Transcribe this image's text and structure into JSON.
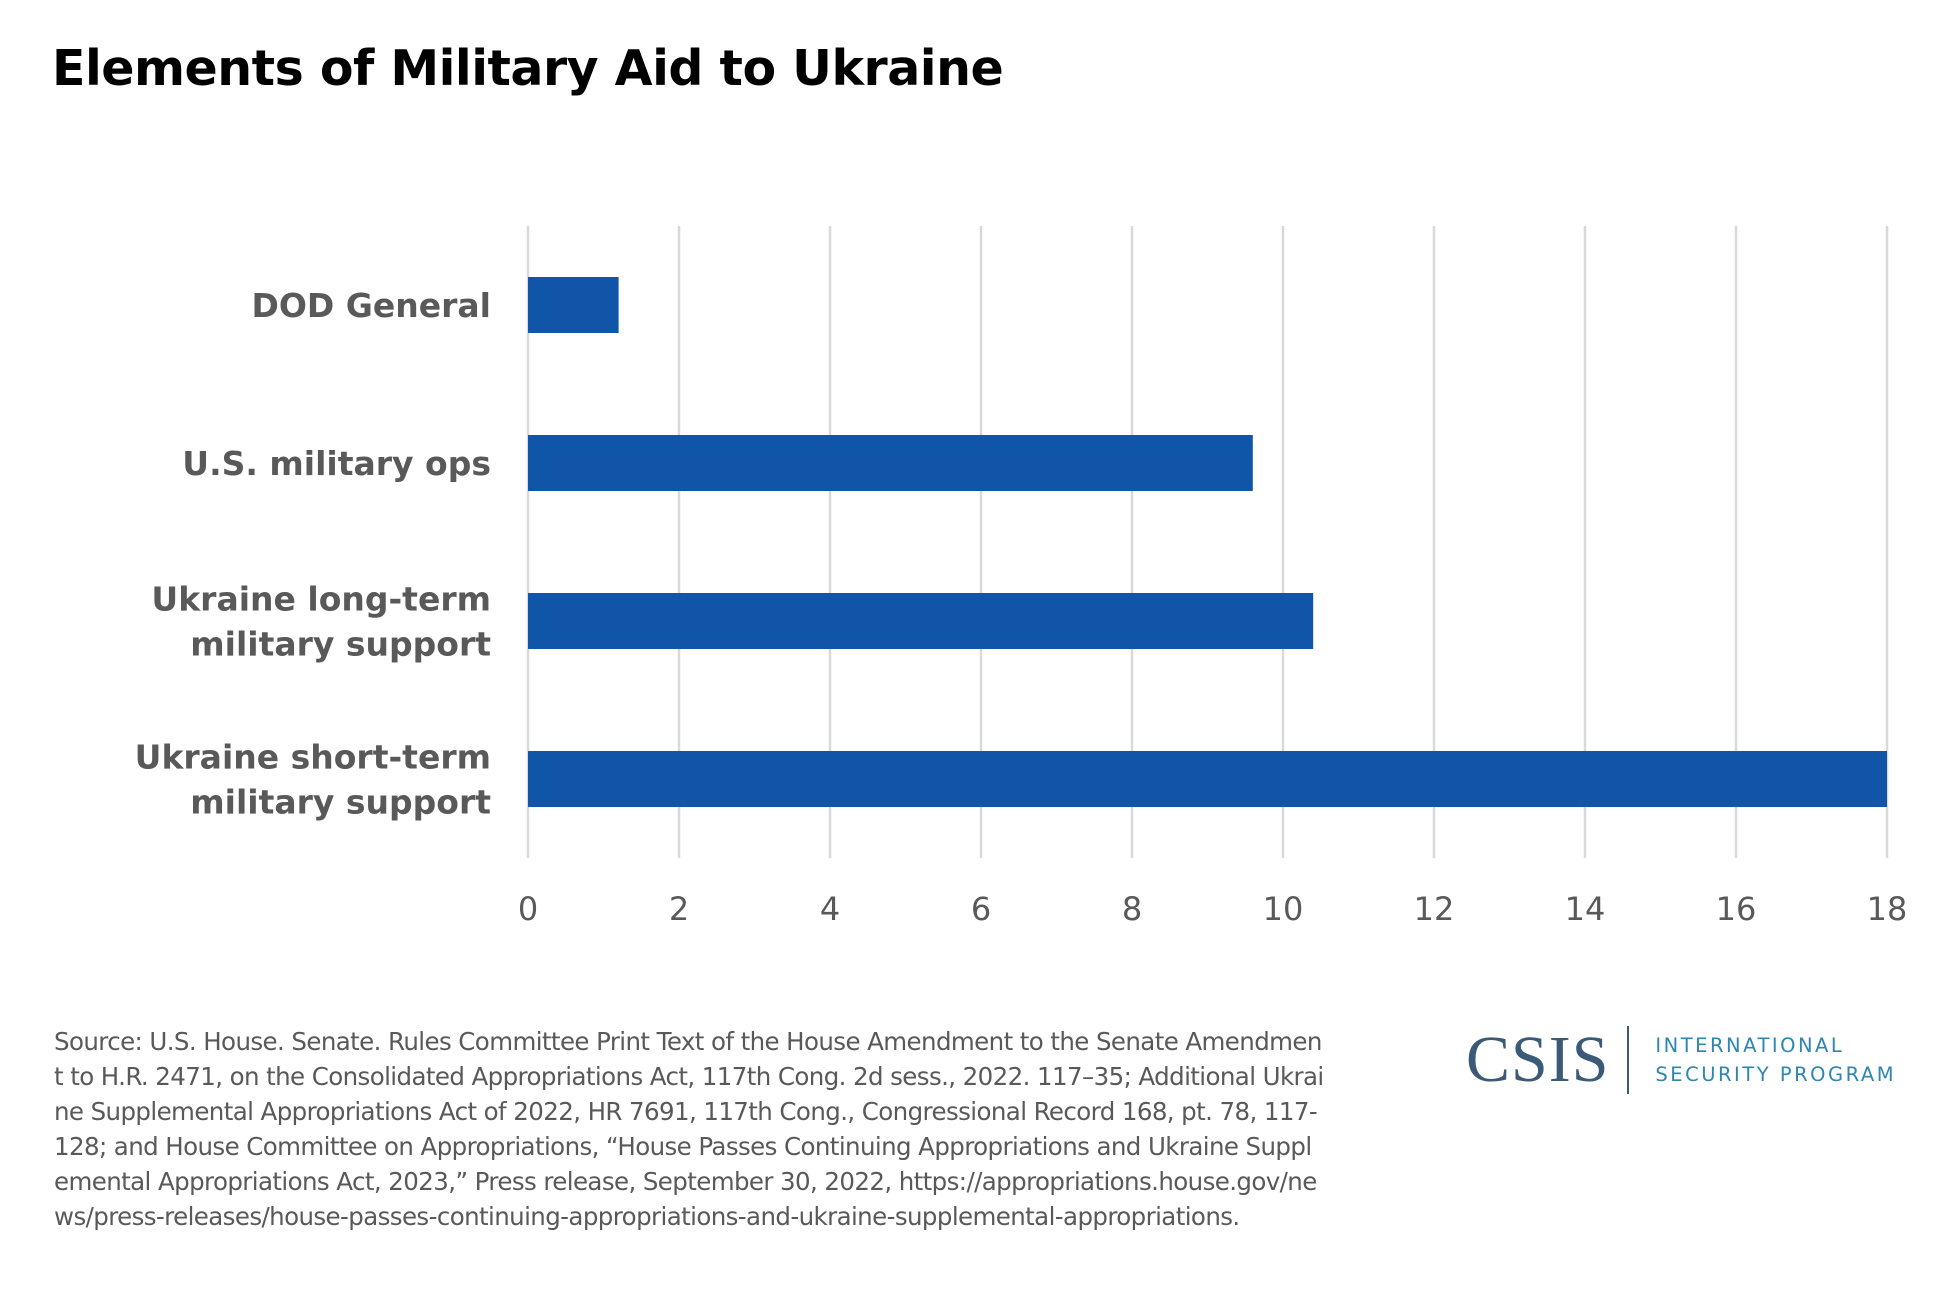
{
  "title": "Elements of Military Aid to Ukraine",
  "chart_data": {
    "type": "bar",
    "orientation": "horizontal",
    "title": "Elements of Military Aid to Ukraine",
    "categories": [
      [
        "DOD General"
      ],
      [
        "U.S. military ops"
      ],
      [
        "Ukraine long-term",
        "military support"
      ],
      [
        "Ukraine short-term",
        "military support"
      ]
    ],
    "values": [
      1.2,
      9.6,
      10.4,
      18
    ],
    "xlim": [
      0,
      18
    ],
    "xticks": [
      0,
      2,
      4,
      6,
      8,
      10,
      12,
      14,
      16,
      18
    ],
    "xlabel": "",
    "ylabel": "",
    "grid": "vertical",
    "legend": "none",
    "bar_color": "#1155a8",
    "grid_color": "#d9d9d9"
  },
  "source": "Source: U.S. House. Senate. Rules Committee Print Text of the House Amendment to the Senate Amendment to H.R. 2471, on the Consolidated Appropriations Act, 117th Cong. 2d sess., 2022. 117–35; Additional Ukraine Supplemental Appropriations Act of 2022, HR 7691, 117th Cong., Congressional Record 168, pt. 78, 117-128; and House Committee on Appropriations, “House Passes Continuing Appropriations and Ukraine Supplemental Appropriations Act, 2023,” Press release, September 30, 2022, https://appropriations.house.gov/news/press-releases/house-passes-continuing-appropriations-and-ukraine-supplemental-appropriations.",
  "logo": {
    "mark": "CSIS",
    "program_line1": "INTERNATIONAL",
    "program_line2": "SECURITY PROGRAM",
    "color": "#3b5a77",
    "program_color": "#2e86b2"
  }
}
